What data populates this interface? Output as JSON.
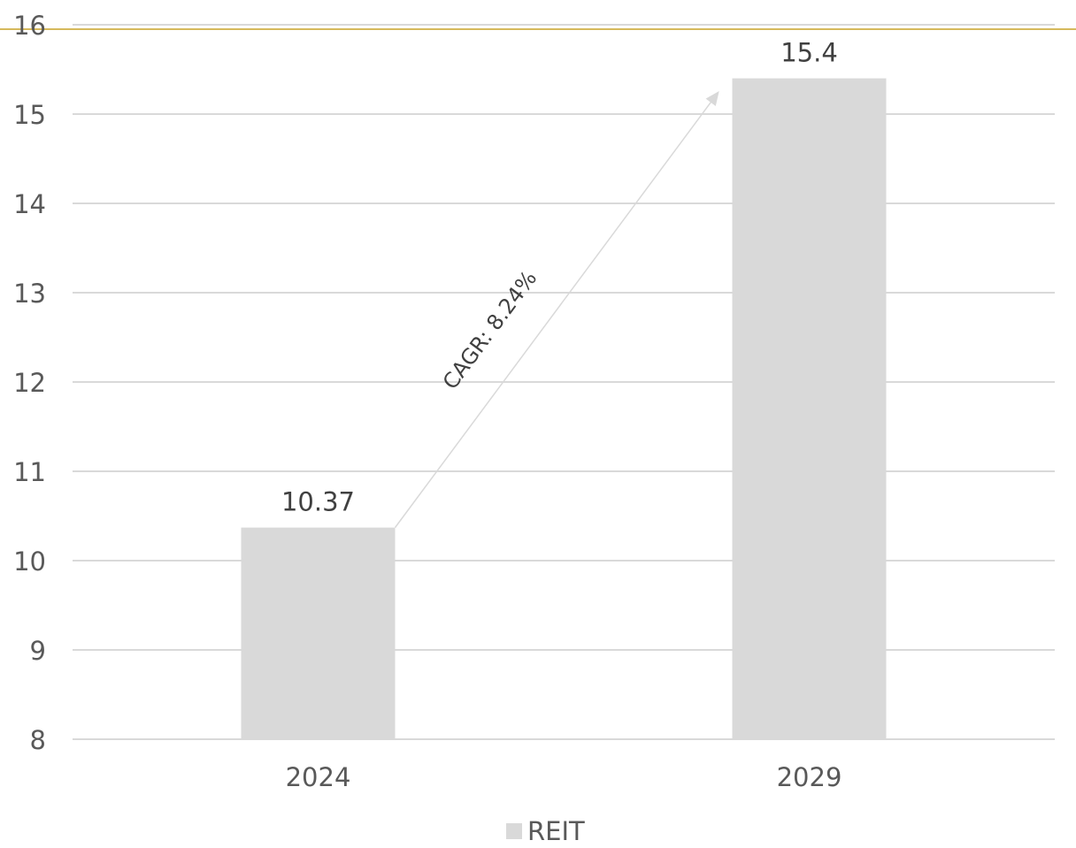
{
  "chart_data": {
    "type": "bar",
    "categories": [
      "2024",
      "2029"
    ],
    "series": [
      {
        "name": "REIT",
        "values": [
          10.37,
          15.4
        ],
        "color": "#d9d9d9"
      }
    ],
    "data_labels": [
      "10.37",
      "15.4"
    ],
    "ylim": [
      8,
      16
    ],
    "yticks": [
      "8",
      "9",
      "10",
      "11",
      "12",
      "13",
      "14",
      "15",
      "16"
    ],
    "title": "",
    "xlabel": "",
    "ylabel": "",
    "grid": true,
    "legend": {
      "position": "bottom",
      "entries": [
        "REIT"
      ]
    },
    "annotation": {
      "text": "CAGR: 8.24%",
      "type": "arrow",
      "from": "2024",
      "to": "2029"
    }
  },
  "colors": {
    "bar": "#d9d9d9",
    "grid": "#d9d9d9",
    "accent_line": "#c9a227",
    "arrow": "#d9d9d9"
  }
}
